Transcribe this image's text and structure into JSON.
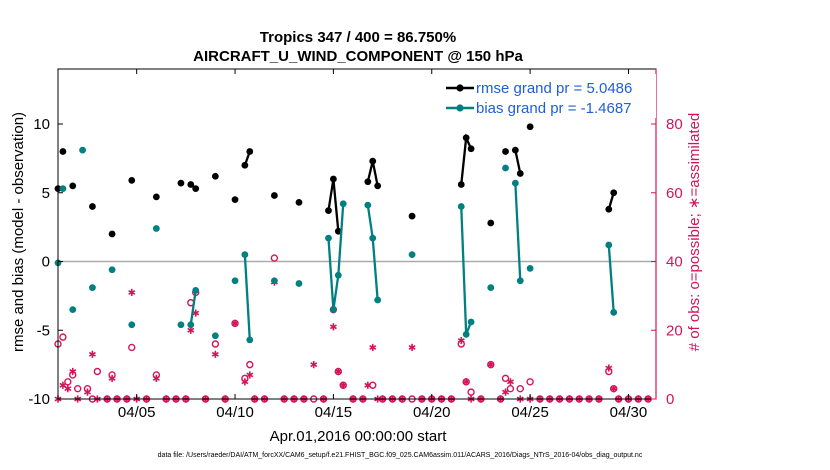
{
  "chart_data": {
    "type": "line",
    "title": "Tropics 347 / 400 = 86.750%",
    "subtitle": "AIRCRAFT_U_WIND_COMPONENT @ 150 hPa",
    "xlabel": "Apr.01,2016 00:00:00 start",
    "ylabel_left": "rmse and bias (model - observation)",
    "ylabel_right": "# of obs: o=possible; ∗=assimilated",
    "footer": "data file: /Users/raeder/DAI/ATM_forcXX/CAM6_setup/f.e21.FHIST_BGC.f09_025.CAM6assim.011/ACARS_2016/Diags_NTrS_2016-04/obs_diag_output.nc",
    "x_unit": "days since Apr.01,2016 00:00:00",
    "xlim": [
      0,
      30.4
    ],
    "ylim_left": [
      -10,
      14
    ],
    "ylim_right": [
      0,
      96
    ],
    "xticks": [
      {
        "x": 4,
        "label": "04/05"
      },
      {
        "x": 9,
        "label": "04/10"
      },
      {
        "x": 14,
        "label": "04/15"
      },
      {
        "x": 19,
        "label": "04/20"
      },
      {
        "x": 24,
        "label": "04/25"
      },
      {
        "x": 29,
        "label": "04/30"
      }
    ],
    "yticks_left": [
      -10,
      -5,
      0,
      5,
      10
    ],
    "yticks_right": [
      0,
      20,
      40,
      60,
      80
    ],
    "zero_line": 0,
    "legend": {
      "location": "top-right",
      "entries": [
        {
          "label": "rmse grand pr = 5.0486",
          "series": "rmse"
        },
        {
          "label": "bias grand pr = -1.4687",
          "series": "bias"
        }
      ]
    },
    "colors": {
      "rmse": "#000000",
      "bias": "#008080",
      "obs": "#d4145a",
      "axis_right": "#d4145a",
      "legend_text": "#1f5fd6",
      "zero_line": "#aaaaaa"
    },
    "series": [
      {
        "name": "rmse",
        "axis": "left",
        "segments": [
          [
            [
              0.0,
              5.3
            ]
          ],
          [
            [
              0.25,
              8.0
            ]
          ],
          [
            [
              0.75,
              5.5
            ]
          ],
          [
            [
              1.75,
              4.0
            ]
          ],
          [
            [
              2.75,
              2.0
            ]
          ],
          [
            [
              3.75,
              5.9
            ]
          ],
          [
            [
              5.0,
              4.7
            ]
          ],
          [
            [
              6.25,
              5.7
            ]
          ],
          [
            [
              6.75,
              5.6
            ]
          ],
          [
            [
              7.0,
              5.3
            ]
          ],
          [
            [
              8.0,
              6.2
            ]
          ],
          [
            [
              9.0,
              4.5
            ]
          ],
          [
            [
              9.5,
              7.0
            ],
            [
              9.75,
              8.0
            ]
          ],
          [
            [
              11.0,
              4.8
            ]
          ],
          [
            [
              12.25,
              4.3
            ]
          ],
          [
            [
              13.75,
              3.7
            ],
            [
              14.0,
              6.0
            ],
            [
              14.25,
              2.2
            ]
          ],
          [
            [
              15.75,
              5.8
            ],
            [
              16.0,
              7.3
            ],
            [
              16.25,
              5.5
            ]
          ],
          [
            [
              18.0,
              3.3
            ]
          ],
          [
            [
              20.5,
              5.6
            ],
            [
              20.75,
              9.0
            ],
            [
              21.0,
              8.2
            ]
          ],
          [
            [
              22.0,
              2.8
            ]
          ],
          [
            [
              22.75,
              8.0
            ]
          ],
          [
            [
              23.25,
              8.1
            ],
            [
              23.5,
              6.4
            ]
          ],
          [
            [
              24.0,
              9.8
            ]
          ],
          [
            [
              28.0,
              3.8
            ],
            [
              28.25,
              5.0
            ]
          ]
        ]
      },
      {
        "name": "bias",
        "axis": "left",
        "segments": [
          [
            [
              0.0,
              -0.1
            ]
          ],
          [
            [
              0.25,
              5.3
            ]
          ],
          [
            [
              0.75,
              -3.5
            ]
          ],
          [
            [
              1.25,
              8.1
            ]
          ],
          [
            [
              1.75,
              -1.9
            ]
          ],
          [
            [
              2.75,
              -0.6
            ]
          ],
          [
            [
              3.75,
              -4.6
            ]
          ],
          [
            [
              5.0,
              2.4
            ]
          ],
          [
            [
              6.25,
              -4.6
            ]
          ],
          [
            [
              6.75,
              -4.6
            ],
            [
              7.0,
              -2.1
            ]
          ],
          [
            [
              8.0,
              -5.4
            ]
          ],
          [
            [
              9.0,
              -1.4
            ]
          ],
          [
            [
              9.5,
              0.5
            ],
            [
              9.75,
              -5.7
            ]
          ],
          [
            [
              11.0,
              -1.4
            ]
          ],
          [
            [
              12.25,
              -1.6
            ]
          ],
          [
            [
              13.75,
              1.7
            ],
            [
              14.0,
              -3.5
            ],
            [
              14.25,
              -1.0
            ],
            [
              14.5,
              4.2
            ]
          ],
          [
            [
              15.75,
              4.1
            ],
            [
              16.0,
              1.7
            ],
            [
              16.25,
              -2.8
            ]
          ],
          [
            [
              18.0,
              0.5
            ]
          ],
          [
            [
              20.5,
              4.0
            ],
            [
              20.75,
              -5.3
            ],
            [
              21.0,
              -4.4
            ]
          ],
          [
            [
              22.0,
              -1.9
            ]
          ],
          [
            [
              22.75,
              6.8
            ]
          ],
          [
            [
              23.25,
              5.7
            ],
            [
              23.5,
              -1.4
            ]
          ],
          [
            [
              24.0,
              -0.5
            ]
          ],
          [
            [
              28.0,
              1.2
            ],
            [
              28.25,
              -3.7
            ]
          ]
        ]
      }
    ],
    "obs_possible": {
      "axis": "right",
      "marker": "o",
      "points": [
        [
          0.0,
          16
        ],
        [
          0.25,
          18
        ],
        [
          0.5,
          5
        ],
        [
          0.75,
          7
        ],
        [
          1.0,
          3
        ],
        [
          1.5,
          3
        ],
        [
          1.75,
          0
        ],
        [
          2.0,
          8
        ],
        [
          2.5,
          0
        ],
        [
          2.75,
          7
        ],
        [
          3.0,
          0
        ],
        [
          3.5,
          0
        ],
        [
          3.75,
          15
        ],
        [
          4.5,
          0
        ],
        [
          5.0,
          7
        ],
        [
          5.5,
          0
        ],
        [
          6.0,
          0
        ],
        [
          6.5,
          0
        ],
        [
          6.75,
          28
        ],
        [
          7.0,
          31
        ],
        [
          7.5,
          0
        ],
        [
          8.0,
          16
        ],
        [
          8.5,
          0
        ],
        [
          9.0,
          22
        ],
        [
          9.5,
          6
        ],
        [
          9.75,
          10
        ],
        [
          10.0,
          0
        ],
        [
          10.5,
          0
        ],
        [
          11.0,
          41
        ],
        [
          11.5,
          0
        ],
        [
          12.0,
          0
        ],
        [
          12.5,
          0
        ],
        [
          13.0,
          0
        ],
        [
          13.5,
          0
        ],
        [
          14.0,
          26
        ],
        [
          14.25,
          8
        ],
        [
          14.5,
          4
        ],
        [
          15.0,
          0
        ],
        [
          15.5,
          0
        ],
        [
          16.0,
          4
        ],
        [
          16.5,
          0
        ],
        [
          17.0,
          0
        ],
        [
          17.5,
          0
        ],
        [
          18.0,
          0
        ],
        [
          18.5,
          0
        ],
        [
          19.0,
          0
        ],
        [
          19.5,
          0
        ],
        [
          20.0,
          0
        ],
        [
          20.5,
          16
        ],
        [
          20.75,
          5
        ],
        [
          21.0,
          2
        ],
        [
          21.5,
          0
        ],
        [
          22.0,
          10
        ],
        [
          22.5,
          0
        ],
        [
          22.75,
          6
        ],
        [
          23.0,
          3
        ],
        [
          23.5,
          3
        ],
        [
          24.0,
          5
        ],
        [
          24.5,
          0
        ],
        [
          25.0,
          0
        ],
        [
          25.5,
          0
        ],
        [
          26.0,
          0
        ],
        [
          26.5,
          0
        ],
        [
          27.0,
          0
        ],
        [
          27.5,
          0
        ],
        [
          28.0,
          8
        ],
        [
          28.25,
          3
        ],
        [
          28.5,
          0
        ],
        [
          29.0,
          0
        ],
        [
          29.5,
          0
        ],
        [
          30.0,
          0
        ]
      ]
    },
    "obs_assimilated": {
      "axis": "right",
      "marker": "*",
      "points": [
        [
          0.0,
          0
        ],
        [
          0.25,
          4
        ],
        [
          0.5,
          3
        ],
        [
          0.75,
          8
        ],
        [
          1.0,
          0
        ],
        [
          1.5,
          2
        ],
        [
          1.75,
          13
        ],
        [
          2.0,
          0
        ],
        [
          2.5,
          0
        ],
        [
          2.75,
          6
        ],
        [
          3.0,
          0
        ],
        [
          3.5,
          0
        ],
        [
          3.75,
          31
        ],
        [
          4.0,
          0
        ],
        [
          4.5,
          0
        ],
        [
          5.0,
          6
        ],
        [
          5.5,
          0
        ],
        [
          6.0,
          0
        ],
        [
          6.5,
          0
        ],
        [
          6.75,
          20
        ],
        [
          7.0,
          25
        ],
        [
          7.5,
          0
        ],
        [
          8.0,
          13
        ],
        [
          8.5,
          0
        ],
        [
          9.0,
          22
        ],
        [
          9.5,
          5
        ],
        [
          9.75,
          7
        ],
        [
          10.0,
          0
        ],
        [
          10.5,
          0
        ],
        [
          11.0,
          34
        ],
        [
          11.5,
          0
        ],
        [
          12.0,
          0
        ],
        [
          12.5,
          0
        ],
        [
          13.0,
          10
        ],
        [
          13.5,
          0
        ],
        [
          14.0,
          21
        ],
        [
          14.25,
          8
        ],
        [
          14.5,
          4
        ],
        [
          15.0,
          0
        ],
        [
          15.5,
          0
        ],
        [
          15.75,
          4
        ],
        [
          16.0,
          15
        ],
        [
          16.25,
          0
        ],
        [
          16.5,
          0
        ],
        [
          17.0,
          0
        ],
        [
          17.5,
          0
        ],
        [
          18.0,
          15
        ],
        [
          18.5,
          0
        ],
        [
          19.0,
          0
        ],
        [
          19.5,
          0
        ],
        [
          20.0,
          0
        ],
        [
          20.5,
          17
        ],
        [
          20.75,
          5
        ],
        [
          21.0,
          0
        ],
        [
          21.5,
          0
        ],
        [
          22.0,
          10
        ],
        [
          22.5,
          0
        ],
        [
          22.75,
          2
        ],
        [
          23.0,
          5
        ],
        [
          23.5,
          0
        ],
        [
          24.0,
          0
        ],
        [
          24.5,
          0
        ],
        [
          25.0,
          0
        ],
        [
          25.5,
          0
        ],
        [
          26.0,
          0
        ],
        [
          26.5,
          0
        ],
        [
          27.0,
          0
        ],
        [
          27.5,
          0
        ],
        [
          28.0,
          9
        ],
        [
          28.25,
          3
        ],
        [
          28.5,
          0
        ],
        [
          29.0,
          0
        ],
        [
          29.5,
          0
        ],
        [
          30.0,
          0
        ]
      ]
    }
  }
}
